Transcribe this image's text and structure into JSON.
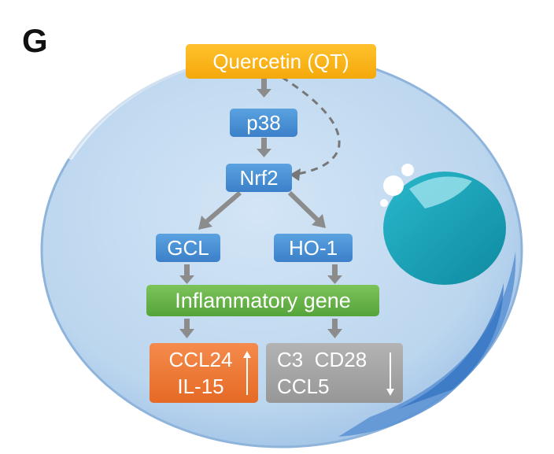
{
  "panel_label": "G",
  "nodes": {
    "quercetin": "Quercetin (QT)",
    "p38": "p38",
    "nrf2": "Nrf2",
    "gcl": "GCL",
    "ho1": "HO-1",
    "inflammatory": "Inflammatory gene",
    "up_genes": {
      "line1": "CCL24",
      "line2": "IL-15"
    },
    "down_genes": {
      "line1": "C3  CD28",
      "line2": "CCL5"
    }
  },
  "colors": {
    "cell_fill": "#b9d4ee",
    "nucleus": "#1aa3b8",
    "node_blue": "#4a90d9",
    "node_yellow": "#f7b519",
    "node_green": "#66b347",
    "node_orange": "#ec7a38",
    "node_gray": "#a6a6a6",
    "arrow": "#8c8c8c"
  },
  "icons": {
    "up": "up-arrow-icon",
    "down": "down-arrow-icon"
  }
}
